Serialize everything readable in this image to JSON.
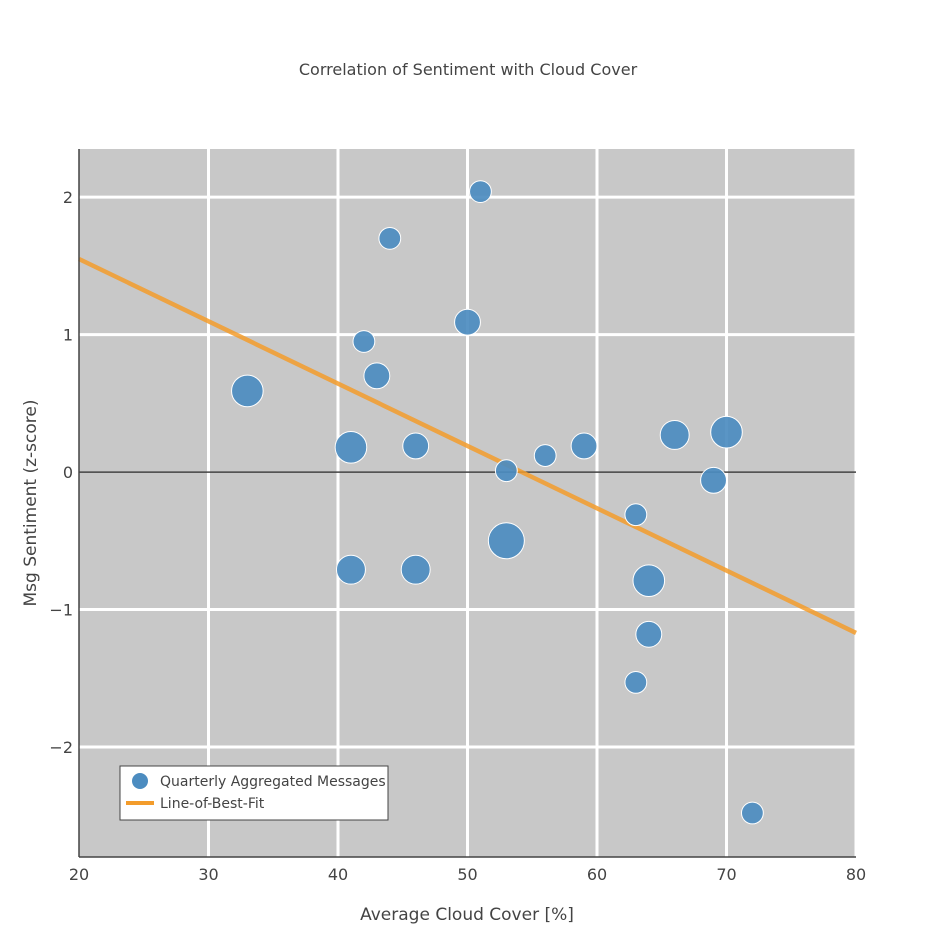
{
  "colors": {
    "plot_bg": "#c8c8c8",
    "grid": "#ffffff",
    "zero_line": "#444444",
    "points": "#4c8cc0",
    "point_outline": "#ffffff",
    "fit_line": "#f39c2b",
    "text": "#444444"
  },
  "chart_data": {
    "type": "scatter",
    "title": "Correlation of Sentiment with Cloud Cover",
    "xlabel": "Average Cloud Cover [%]",
    "ylabel": "Msg Sentiment (z-score)",
    "xlim": [
      20,
      80
    ],
    "ylim": [
      -2.8,
      2.35
    ],
    "x_ticks": [
      20,
      30,
      40,
      50,
      60,
      70,
      80
    ],
    "y_ticks": [
      -2,
      -1,
      0,
      1,
      2
    ],
    "x_tick_labels": [
      "20",
      "30",
      "40",
      "50",
      "60",
      "70",
      "80"
    ],
    "y_tick_labels": [
      "−2",
      "−1",
      "0",
      "1",
      "2"
    ],
    "grid": true,
    "legend_position": "bottom-left",
    "series": [
      {
        "name": "Quarterly Aggregated Messages",
        "kind": "markers",
        "points": [
          {
            "x": 51,
            "y": 2.04,
            "size": 1
          },
          {
            "x": 44,
            "y": 1.7,
            "size": 1
          },
          {
            "x": 50,
            "y": 1.09,
            "size": 2
          },
          {
            "x": 42,
            "y": 0.95,
            "size": 1
          },
          {
            "x": 43,
            "y": 0.7,
            "size": 2
          },
          {
            "x": 33,
            "y": 0.59,
            "size": 4
          },
          {
            "x": 41,
            "y": 0.18,
            "size": 4
          },
          {
            "x": 46,
            "y": 0.19,
            "size": 2
          },
          {
            "x": 53,
            "y": 0.01,
            "size": 1
          },
          {
            "x": 56,
            "y": 0.12,
            "size": 1
          },
          {
            "x": 59,
            "y": 0.19,
            "size": 2
          },
          {
            "x": 66,
            "y": 0.27,
            "size": 3
          },
          {
            "x": 70,
            "y": 0.29,
            "size": 4
          },
          {
            "x": 69,
            "y": -0.06,
            "size": 2
          },
          {
            "x": 63,
            "y": -0.31,
            "size": 1
          },
          {
            "x": 53,
            "y": -0.5,
            "size": 6
          },
          {
            "x": 41,
            "y": -0.71,
            "size": 3
          },
          {
            "x": 46,
            "y": -0.71,
            "size": 3
          },
          {
            "x": 64,
            "y": -0.79,
            "size": 4
          },
          {
            "x": 64,
            "y": -1.18,
            "size": 2
          },
          {
            "x": 63,
            "y": -1.53,
            "size": 1
          },
          {
            "x": 72,
            "y": -2.48,
            "size": 1
          }
        ]
      },
      {
        "name": "Line-of-Best-Fit",
        "kind": "line",
        "x": [
          20,
          80
        ],
        "y": [
          1.55,
          -1.17
        ]
      }
    ]
  }
}
